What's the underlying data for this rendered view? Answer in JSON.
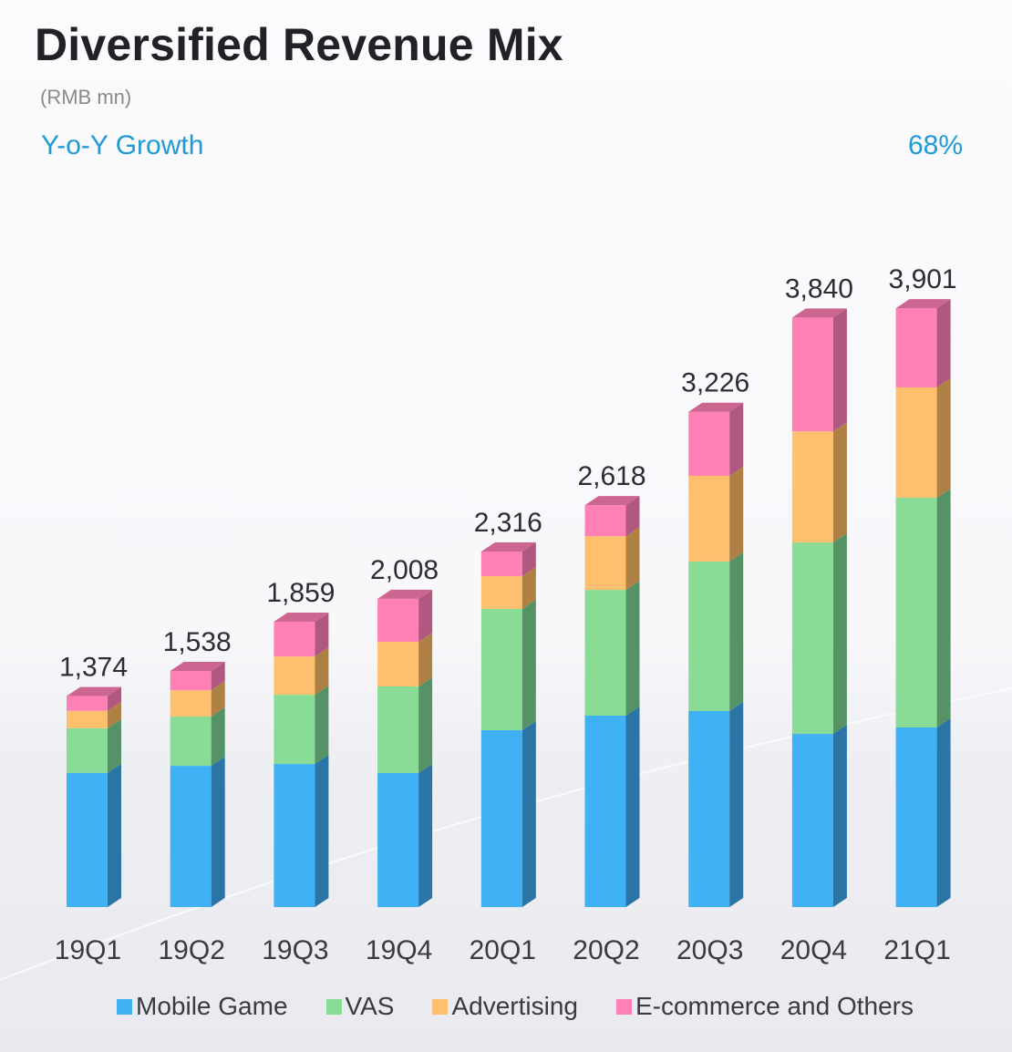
{
  "header": {
    "title": "Diversified Revenue Mix",
    "unit": "(RMB mn)",
    "yoy_label": "Y-o-Y Growth",
    "yoy_value": "68%"
  },
  "chart_data": {
    "type": "bar",
    "stacked": true,
    "style": "3d",
    "title": "Diversified Revenue Mix",
    "subtitle": "(RMB mn)",
    "annotations": [
      {
        "label": "Y-o-Y Growth",
        "value": "68%"
      }
    ],
    "xlabel": "",
    "ylabel": "RMB mn",
    "ylim": [
      0,
      4000
    ],
    "grid": false,
    "legend_position": "bottom",
    "categories": [
      "19Q1",
      "19Q2",
      "19Q3",
      "19Q4",
      "20Q1",
      "20Q2",
      "20Q3",
      "20Q4",
      "21Q1"
    ],
    "totals": [
      1374,
      1538,
      1859,
      2008,
      2316,
      2618,
      3226,
      3840,
      3901
    ],
    "total_labels": [
      "1,374",
      "1,538",
      "1,859",
      "2,008",
      "2,316",
      "2,618",
      "3,226",
      "3,840",
      "3,901"
    ],
    "series": [
      {
        "name": "Mobile Game",
        "color": "#41b1f5",
        "side_color": "#2a74a6",
        "values": [
          874,
          920,
          932,
          873,
          1152,
          1247,
          1277,
          1128,
          1170
        ]
      },
      {
        "name": "VAS",
        "color": "#89dc96",
        "side_color": "#559367",
        "values": [
          291,
          321,
          451,
          564,
          790,
          819,
          974,
          1247,
          1496
        ]
      },
      {
        "name": "Advertising",
        "color": "#fec06e",
        "side_color": "#ae8044",
        "values": [
          113,
          172,
          249,
          291,
          214,
          350,
          558,
          724,
          719
        ]
      },
      {
        "name": "E-commerce and Others",
        "color": "#ff80b4",
        "side_color": "#b15880",
        "values": [
          96,
          125,
          227,
          280,
          160,
          202,
          417,
          741,
          516
        ]
      }
    ]
  }
}
